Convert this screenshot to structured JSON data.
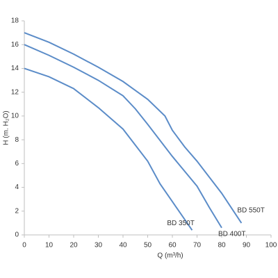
{
  "chart_data": {
    "type": "line",
    "xlabel": "Q (m³/h)",
    "ylabel": "H (m. H₂O)",
    "xlim": [
      0,
      100
    ],
    "xticks": [
      0,
      10,
      20,
      30,
      40,
      50,
      60,
      70,
      80,
      90,
      100
    ],
    "ylim": [
      0,
      18
    ],
    "yticks": [
      0,
      2,
      4,
      6,
      8,
      10,
      12,
      14,
      16,
      18
    ],
    "grid": false,
    "series": [
      {
        "name": "BD 350T",
        "color": "#5b8cc8",
        "x": [
          0,
          10,
          20,
          30,
          40,
          50,
          55,
          60,
          68
        ],
        "values": [
          14,
          13.3,
          12.3,
          10.7,
          8.9,
          6.2,
          4.3,
          2.8,
          0.4
        ]
      },
      {
        "name": "BD 400T",
        "color": "#5b8cc8",
        "x": [
          0,
          10,
          20,
          30,
          40,
          45,
          50,
          60,
          70,
          75,
          80
        ],
        "values": [
          16,
          15.1,
          14.1,
          13,
          11.7,
          10.6,
          9.3,
          6.6,
          4.1,
          2.3,
          0.6
        ]
      },
      {
        "name": "BD 550T",
        "color": "#5b8cc8",
        "x": [
          0,
          10,
          20,
          30,
          40,
          50,
          57,
          60,
          65,
          70,
          80,
          88
        ],
        "values": [
          17,
          16.2,
          15.2,
          14.1,
          12.9,
          11.4,
          10,
          8.8,
          7.4,
          6.2,
          3.5,
          1.0
        ]
      }
    ]
  }
}
